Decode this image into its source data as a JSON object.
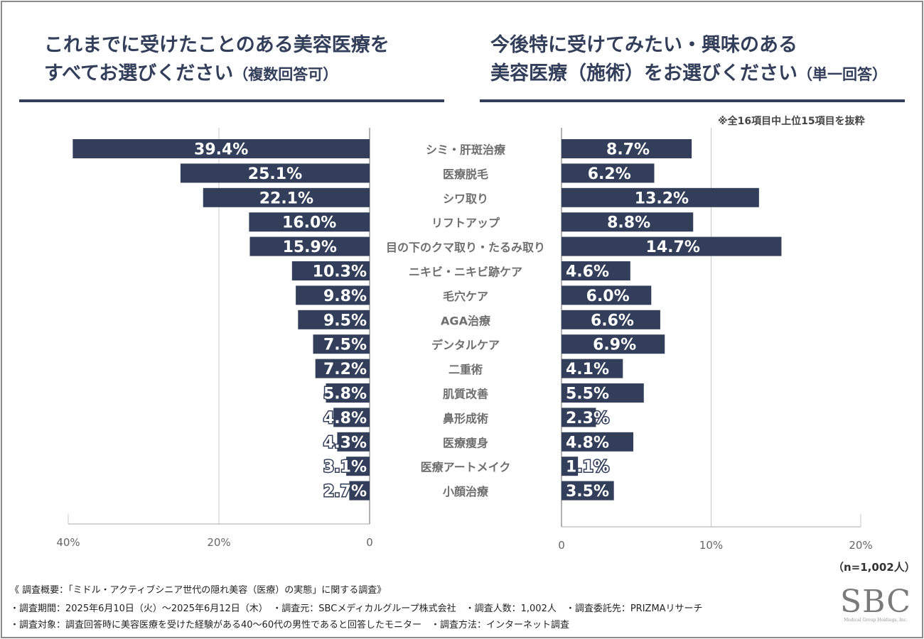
{
  "titles": {
    "left_line1": "これまでに受けたことのある美容医療を",
    "left_line2": "すべてお選びください",
    "left_suffix": "（複数回答可）",
    "right_line1": "今後特に受けてみたい・興味のある",
    "right_line2": "美容医療（施術）をお選びください",
    "right_suffix": "（単一回答）"
  },
  "note": "※全16項目中上位15項目を抜粋",
  "sample_size": "（n=1,002人）",
  "chart_data": [
    {
      "type": "bar",
      "orientation": "horizontal-reversed",
      "title": "これまでに受けたことのある美容医療をすべてお選びください（複数回答可）",
      "categories": [
        "シミ・肝斑治療",
        "医療脱毛",
        "シワ取り",
        "リフトアップ",
        "目の下のクマ取り・たるみ取り",
        "ニキビ・ニキビ跡ケア",
        "毛穴ケア",
        "AGA治療",
        "デンタルケア",
        "二重術",
        "肌質改善",
        "鼻形成術",
        "医療痩身",
        "医療アートメイク",
        "小顔治療"
      ],
      "values": [
        39.4,
        25.1,
        22.1,
        16.0,
        15.9,
        10.3,
        9.8,
        9.5,
        7.5,
        7.2,
        5.8,
        4.8,
        4.3,
        3.1,
        2.7
      ],
      "labels": [
        "39.4%",
        "25.1%",
        "22.1%",
        "16.0%",
        "15.9%",
        "10.3%",
        "9.8%",
        "9.5%",
        "7.5%",
        "7.2%",
        "5.8%",
        "4.8%",
        "4.3%",
        "3.1%",
        "2.7%"
      ],
      "xlim": [
        0,
        40
      ],
      "xticks": [
        40,
        20,
        0
      ],
      "xtick_labels": [
        "40%",
        "20%",
        "0"
      ],
      "grid": true,
      "bar_color": "#333f5a"
    },
    {
      "type": "bar",
      "orientation": "horizontal",
      "title": "今後特に受けてみたい・興味のある美容医療（施術）をお選びください（単一回答）",
      "categories": [
        "シミ・肝斑治療",
        "医療脱毛",
        "シワ取り",
        "リフトアップ",
        "目の下のクマ取り・たるみ取り",
        "ニキビ・ニキビ跡ケア",
        "毛穴ケア",
        "AGA治療",
        "デンタルケア",
        "二重術",
        "肌質改善",
        "鼻形成術",
        "医療痩身",
        "医療アートメイク",
        "小顔治療"
      ],
      "values": [
        8.7,
        6.2,
        13.2,
        8.8,
        14.7,
        4.6,
        6.0,
        6.6,
        6.9,
        4.1,
        5.5,
        2.3,
        4.8,
        1.1,
        3.5
      ],
      "labels": [
        "8.7%",
        "6.2%",
        "13.2%",
        "8.8%",
        "14.7%",
        "4.6%",
        "6.0%",
        "6.6%",
        "6.9%",
        "4.1%",
        "5.5%",
        "2.3%",
        "4.8%",
        "1.1%",
        "3.5%"
      ],
      "xlim": [
        0,
        20
      ],
      "xticks": [
        0,
        10,
        20
      ],
      "xtick_labels": [
        "0",
        "10%",
        "20%"
      ],
      "grid": true,
      "bar_color": "#333f5a"
    }
  ],
  "footer": {
    "heading": "《 調査概要：「ミドル・アクティブシニア世代の隠れ美容（医療）の実態」に関する調査》",
    "line2": "・調査期間：2025年6月10日（火）〜2025年6月12日（木）　・調査元：SBCメディカルグループ株式会社　・調査人数：1,002人　・調査委託先：PRIZMAリサーチ",
    "line3": "・調査対象：調査回答時に美容医療を受けた経験がある40〜60代の男性であると回答したモニター　・調査方法：インターネット調査"
  },
  "logo": {
    "text": "SBC",
    "subtext": "Medical Group Holdings, Inc."
  }
}
